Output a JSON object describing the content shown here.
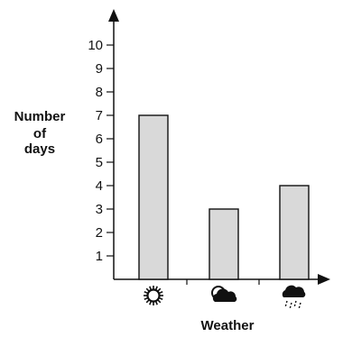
{
  "chart_data": {
    "type": "bar",
    "categories": [
      "sunny",
      "partly cloudy",
      "rainy"
    ],
    "category_icons": [
      "sun-icon",
      "partly-cloudy-icon",
      "rain-cloud-icon"
    ],
    "values": [
      7,
      3,
      4
    ],
    "xlabel": "Weather",
    "ylabel": [
      "Number",
      "of",
      "days"
    ],
    "ylim": [
      0,
      10
    ],
    "yticks": [
      "1",
      "2",
      "3",
      "4",
      "5",
      "6",
      "7",
      "8",
      "9",
      "10"
    ],
    "grid": false,
    "colors": {
      "bar_fill": "#d9d9d9",
      "stroke": "#111111"
    }
  }
}
